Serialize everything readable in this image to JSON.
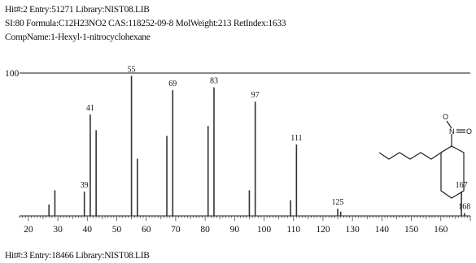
{
  "header": {
    "hit_line": "Hit#:2 Entry:51271 Library:NIST08.LIB",
    "info_line": "SI:80 Formula:C12H23NO2 CAS:118252-09-8 MolWeight:213 RetIndex:1633",
    "compound_line": "CompName:1-Hexyl-1-nitrocyclohexane",
    "next_hit_line": "Hit#:3 Entry:18466 Library:NIST08.LIB"
  },
  "structure": {
    "atom_o_top": "O",
    "atom_n": "N",
    "atom_o_right": "O"
  },
  "chart_data": {
    "type": "bar",
    "title": "",
    "xlabel": "",
    "ylabel": "",
    "y_max_label": "100",
    "xlim": [
      17,
      170
    ],
    "ylim": [
      0,
      100
    ],
    "x_ticks": [
      "20",
      "30",
      "40",
      "50",
      "60",
      "70",
      "80",
      "90",
      "100",
      "110",
      "120",
      "130",
      "140",
      "150",
      "160"
    ],
    "peaks": [
      {
        "mz": 27,
        "intensity": 8,
        "label": ""
      },
      {
        "mz": 29,
        "intensity": 18,
        "label": ""
      },
      {
        "mz": 39,
        "intensity": 17,
        "label": "39"
      },
      {
        "mz": 41,
        "intensity": 71,
        "label": "41"
      },
      {
        "mz": 43,
        "intensity": 60,
        "label": ""
      },
      {
        "mz": 55,
        "intensity": 98,
        "label": "55"
      },
      {
        "mz": 57,
        "intensity": 40,
        "label": ""
      },
      {
        "mz": 67,
        "intensity": 56,
        "label": ""
      },
      {
        "mz": 69,
        "intensity": 88,
        "label": "69"
      },
      {
        "mz": 81,
        "intensity": 63,
        "label": ""
      },
      {
        "mz": 83,
        "intensity": 90,
        "label": "83"
      },
      {
        "mz": 95,
        "intensity": 18,
        "label": ""
      },
      {
        "mz": 97,
        "intensity": 80,
        "label": "97"
      },
      {
        "mz": 109,
        "intensity": 11,
        "label": ""
      },
      {
        "mz": 111,
        "intensity": 50,
        "label": "111"
      },
      {
        "mz": 125,
        "intensity": 5,
        "label": "125"
      },
      {
        "mz": 126,
        "intensity": 3,
        "label": ""
      },
      {
        "mz": 167,
        "intensity": 17,
        "label": "167"
      },
      {
        "mz": 168,
        "intensity": 2,
        "label": "168"
      }
    ]
  }
}
